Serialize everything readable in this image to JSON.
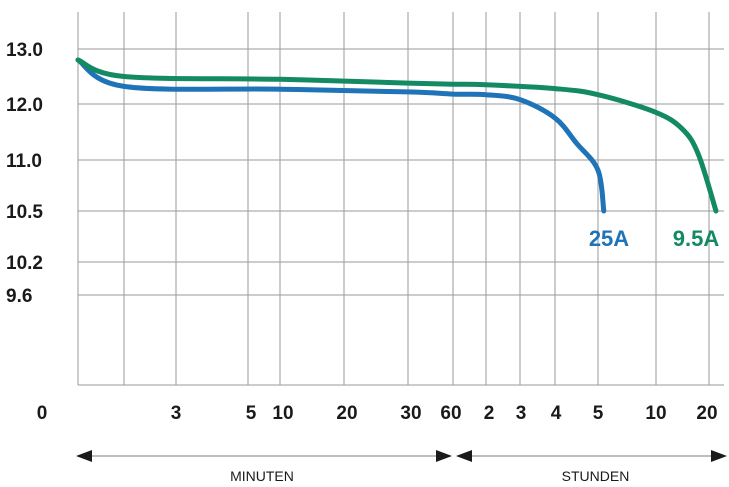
{
  "chart_data": {
    "type": "line",
    "title": "",
    "xlabel": "",
    "ylabel": "",
    "y_ticks": [
      "13.0",
      "12.0",
      "11.0",
      "10.5",
      "10.2",
      "9.6"
    ],
    "x_tick_labels": [
      "0",
      "3",
      "5",
      "10",
      "20",
      "30",
      "60",
      "2",
      "3",
      "4",
      "5",
      "10",
      "20"
    ],
    "time_units": [
      {
        "label": "MINUTEN",
        "range": [
          "0",
          "60"
        ]
      },
      {
        "label": "STUNDEN",
        "range": [
          "1",
          "20"
        ]
      }
    ],
    "grid": true,
    "series": [
      {
        "name": "25A",
        "color": "#1f73b7",
        "points": [
          {
            "t": "0",
            "v": 12.8
          },
          {
            "t": "2 min",
            "v": 12.32
          },
          {
            "t": "10 min",
            "v": 12.27
          },
          {
            "t": "30 min",
            "v": 12.22
          },
          {
            "t": "1 h",
            "v": 12.18
          },
          {
            "t": "2 h",
            "v": 12.17
          },
          {
            "t": "3 h",
            "v": 12.08
          },
          {
            "t": "4 h",
            "v": 11.75
          },
          {
            "t": "4.5 h",
            "v": 11.3
          },
          {
            "t": "5 h",
            "v": 10.9
          },
          {
            "t": "5.5 h",
            "v": 10.5
          }
        ]
      },
      {
        "name": "9.5A",
        "color": "#138a63",
        "points": [
          {
            "t": "0",
            "v": 12.8
          },
          {
            "t": "2 min",
            "v": 12.5
          },
          {
            "t": "10 min",
            "v": 12.45
          },
          {
            "t": "30 min",
            "v": 12.38
          },
          {
            "t": "1 h",
            "v": 12.36
          },
          {
            "t": "2 h",
            "v": 12.35
          },
          {
            "t": "4 h",
            "v": 12.28
          },
          {
            "t": "5 h",
            "v": 12.17
          },
          {
            "t": "10 h",
            "v": 11.85
          },
          {
            "t": "15 h",
            "v": 11.55
          },
          {
            "t": "18 h",
            "v": 11.1
          },
          {
            "t": "21 h",
            "v": 10.5
          }
        ]
      }
    ]
  }
}
